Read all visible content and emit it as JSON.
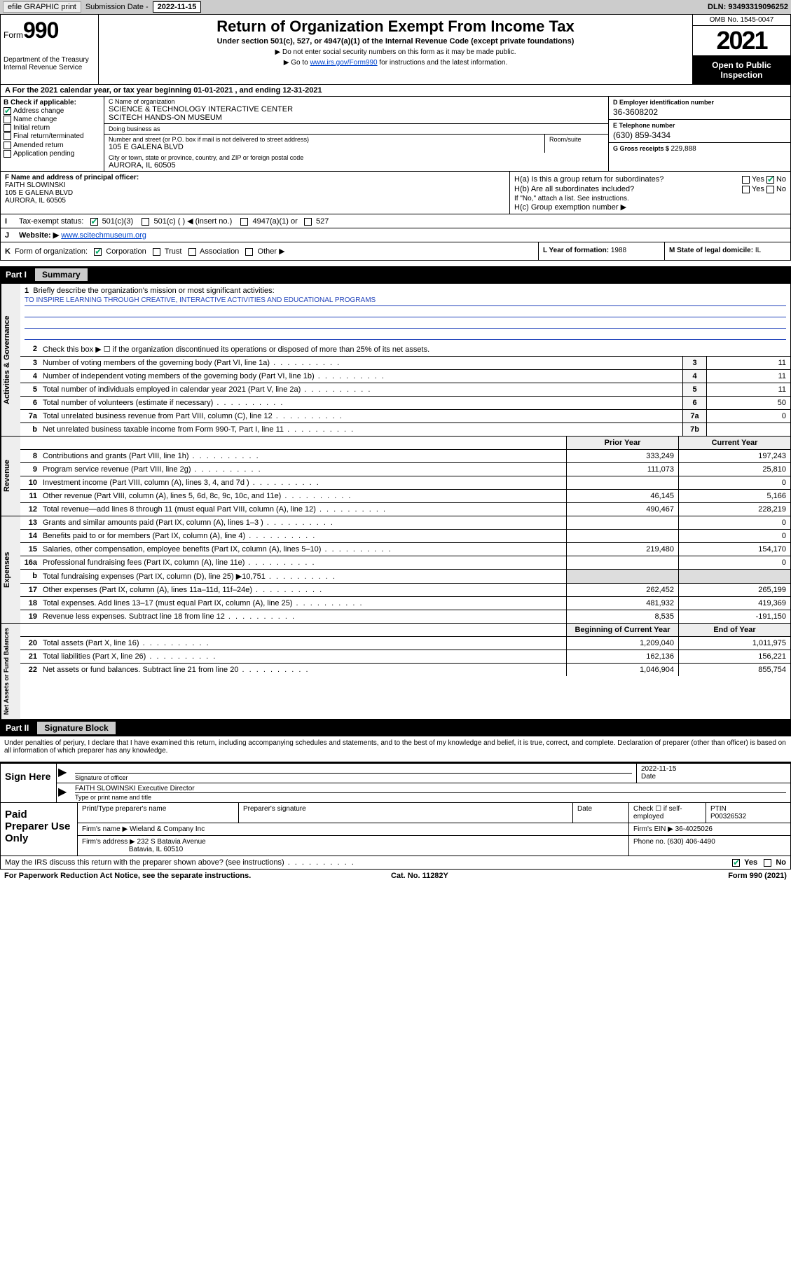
{
  "topbar": {
    "efile": "efile GRAPHIC print",
    "submission_label": "Submission Date - ",
    "submission_date": "2022-11-15",
    "dln_label": "DLN: ",
    "dln": "93493319096252"
  },
  "header": {
    "form_word": "Form",
    "form_no": "990",
    "dept": "Department of the Treasury\nInternal Revenue Service",
    "title": "Return of Organization Exempt From Income Tax",
    "sub": "Under section 501(c), 527, or 4947(a)(1) of the Internal Revenue Code (except private foundations)",
    "note1": "▶ Do not enter social security numbers on this form as it may be made public.",
    "note2_pre": "▶ Go to ",
    "note2_link": "www.irs.gov/Form990",
    "note2_post": " for instructions and the latest information.",
    "omb": "OMB No. 1545-0047",
    "year": "2021",
    "inspect": "Open to Public Inspection"
  },
  "row_a": "A For the 2021 calendar year, or tax year beginning 01-01-2021    , and ending 12-31-2021",
  "col_b": {
    "title": "B Check if applicable:",
    "items": [
      {
        "label": "Address change",
        "checked": true
      },
      {
        "label": "Name change",
        "checked": false
      },
      {
        "label": "Initial return",
        "checked": false
      },
      {
        "label": "Final return/terminated",
        "checked": false
      },
      {
        "label": "Amended return",
        "checked": false
      },
      {
        "label": "Application pending",
        "checked": false
      }
    ]
  },
  "col_c": {
    "name_label": "C Name of organization",
    "name1": "SCIENCE & TECHNOLOGY INTERACTIVE CENTER",
    "name2": "SCITECH HANDS-ON MUSEUM",
    "dba_label": "Doing business as",
    "dba": "",
    "addr_label": "Number and street (or P.O. box if mail is not delivered to street address)",
    "addr": "105 E GALENA BLVD",
    "suite_label": "Room/suite",
    "city_label": "City or town, state or province, country, and ZIP or foreign postal code",
    "city": "AURORA, IL  60505"
  },
  "col_de": {
    "d_label": "D Employer identification number",
    "d_val": "36-3608202",
    "e_label": "E Telephone number",
    "e_val": "(630) 859-3434",
    "g_label": "G Gross receipts $ ",
    "g_val": "229,888"
  },
  "col_f": {
    "label": "F Name and address of principal officer:",
    "name": "FAITH SLOWINSKI",
    "addr1": "105 E GALENA BLVD",
    "addr2": "AURORA, IL  60505"
  },
  "col_h": {
    "a_label": "H(a)  Is this a group return for subordinates?",
    "a_yes": "Yes",
    "a_no": "No",
    "b_label": "H(b)  Are all subordinates included?",
    "b_note": "If \"No,\" attach a list. See instructions.",
    "c_label": "H(c)  Group exemption number ▶"
  },
  "row_i": {
    "k": "I",
    "label": "Tax-exempt status:",
    "opt1": "501(c)(3)",
    "opt2": "501(c) (   ) ◀ (insert no.)",
    "opt3": "4947(a)(1) or",
    "opt4": "527"
  },
  "row_j": {
    "k": "J",
    "label": "Website: ▶ ",
    "val": "www.scitechmuseum.org"
  },
  "row_k": {
    "k": "K",
    "label": "Form of organization:",
    "opts": [
      "Corporation",
      "Trust",
      "Association",
      "Other ▶"
    ],
    "l_label": "L Year of formation: ",
    "l_val": "1988",
    "m_label": "M State of legal domicile: ",
    "m_val": "IL"
  },
  "part1": {
    "no": "Part I",
    "title": "Summary"
  },
  "gov_tab": "Activities & Governance",
  "mission": {
    "num": "1",
    "label": "Briefly describe the organization's mission or most significant activities:",
    "text": "TO INSPIRE LEARNING THROUGH CREATIVE, INTERACTIVE ACTIVITIES AND EDUCATIONAL PROGRAMS"
  },
  "line2": "Check this box ▶ ☐  if the organization discontinued its operations or disposed of more than 25% of its net assets.",
  "gov_lines": [
    {
      "n": "3",
      "d": "Number of voting members of the governing body (Part VI, line 1a)",
      "box": "3",
      "v": "11"
    },
    {
      "n": "4",
      "d": "Number of independent voting members of the governing body (Part VI, line 1b)",
      "box": "4",
      "v": "11"
    },
    {
      "n": "5",
      "d": "Total number of individuals employed in calendar year 2021 (Part V, line 2a)",
      "box": "5",
      "v": "11"
    },
    {
      "n": "6",
      "d": "Total number of volunteers (estimate if necessary)",
      "box": "6",
      "v": "50"
    },
    {
      "n": "7a",
      "d": "Total unrelated business revenue from Part VIII, column (C), line 12",
      "box": "7a",
      "v": "0"
    },
    {
      "n": "b",
      "d": "Net unrelated business taxable income from Form 990-T, Part I, line 11",
      "box": "7b",
      "v": ""
    }
  ],
  "rev_tab": "Revenue",
  "rev_hdr": {
    "prior": "Prior Year",
    "curr": "Current Year"
  },
  "rev_lines": [
    {
      "n": "8",
      "d": "Contributions and grants (Part VIII, line 1h)",
      "p": "333,249",
      "c": "197,243"
    },
    {
      "n": "9",
      "d": "Program service revenue (Part VIII, line 2g)",
      "p": "111,073",
      "c": "25,810"
    },
    {
      "n": "10",
      "d": "Investment income (Part VIII, column (A), lines 3, 4, and 7d )",
      "p": "",
      "c": "0"
    },
    {
      "n": "11",
      "d": "Other revenue (Part VIII, column (A), lines 5, 6d, 8c, 9c, 10c, and 11e)",
      "p": "46,145",
      "c": "5,166"
    },
    {
      "n": "12",
      "d": "Total revenue—add lines 8 through 11 (must equal Part VIII, column (A), line 12)",
      "p": "490,467",
      "c": "228,219"
    }
  ],
  "exp_tab": "Expenses",
  "exp_lines": [
    {
      "n": "13",
      "d": "Grants and similar amounts paid (Part IX, column (A), lines 1–3 )",
      "p": "",
      "c": "0"
    },
    {
      "n": "14",
      "d": "Benefits paid to or for members (Part IX, column (A), line 4)",
      "p": "",
      "c": "0"
    },
    {
      "n": "15",
      "d": "Salaries, other compensation, employee benefits (Part IX, column (A), lines 5–10)",
      "p": "219,480",
      "c": "154,170"
    },
    {
      "n": "16a",
      "d": "Professional fundraising fees (Part IX, column (A), line 11e)",
      "p": "",
      "c": "0"
    },
    {
      "n": "b",
      "d": "Total fundraising expenses (Part IX, column (D), line 25) ▶10,751",
      "p": "",
      "c": "",
      "shade": true
    },
    {
      "n": "17",
      "d": "Other expenses (Part IX, column (A), lines 11a–11d, 11f–24e)",
      "p": "262,452",
      "c": "265,199"
    },
    {
      "n": "18",
      "d": "Total expenses. Add lines 13–17 (must equal Part IX, column (A), line 25)",
      "p": "481,932",
      "c": "419,369"
    },
    {
      "n": "19",
      "d": "Revenue less expenses. Subtract line 18 from line 12",
      "p": "8,535",
      "c": "-191,150"
    }
  ],
  "na_tab": "Net Assets or Fund Balances",
  "na_hdr": {
    "prior": "Beginning of Current Year",
    "curr": "End of Year"
  },
  "na_lines": [
    {
      "n": "20",
      "d": "Total assets (Part X, line 16)",
      "p": "1,209,040",
      "c": "1,011,975"
    },
    {
      "n": "21",
      "d": "Total liabilities (Part X, line 26)",
      "p": "162,136",
      "c": "156,221"
    },
    {
      "n": "22",
      "d": "Net assets or fund balances. Subtract line 21 from line 20",
      "p": "1,046,904",
      "c": "855,754"
    }
  ],
  "part2": {
    "no": "Part II",
    "title": "Signature Block"
  },
  "sig_text": "Under penalties of perjury, I declare that I have examined this return, including accompanying schedules and statements, and to the best of my knowledge and belief, it is true, correct, and complete. Declaration of preparer (other than officer) is based on all information of which preparer has any knowledge.",
  "sign": {
    "side": "Sign Here",
    "officer_under": "Signature of officer",
    "date": "2022-11-15",
    "date_under": "Date",
    "name": "FAITH SLOWINSKI  Executive Director",
    "name_under": "Type or print name and title"
  },
  "prep": {
    "side": "Paid Preparer Use Only",
    "h1": "Print/Type preparer's name",
    "h2": "Preparer's signature",
    "h3": "Date",
    "h4_pre": "Check ☐ if self-employed",
    "h5_label": "PTIN",
    "h5_val": "P00326532",
    "firm_label": "Firm's name    ▶ ",
    "firm": "Wieland & Company Inc",
    "ein_label": "Firm's EIN ▶ ",
    "ein": "36-4025026",
    "addr_label": "Firm's address ▶ ",
    "addr1": "232 S Batavia Avenue",
    "addr2": "Batavia, IL  60510",
    "phone_label": "Phone no. ",
    "phone": "(630) 406-4490"
  },
  "footer": {
    "q": "May the IRS discuss this return with the preparer shown above? (see instructions)",
    "yes": "Yes",
    "no": "No"
  },
  "bottom": {
    "left": "For Paperwork Reduction Act Notice, see the separate instructions.",
    "mid": "Cat. No. 11282Y",
    "right": "Form 990 (2021)"
  }
}
